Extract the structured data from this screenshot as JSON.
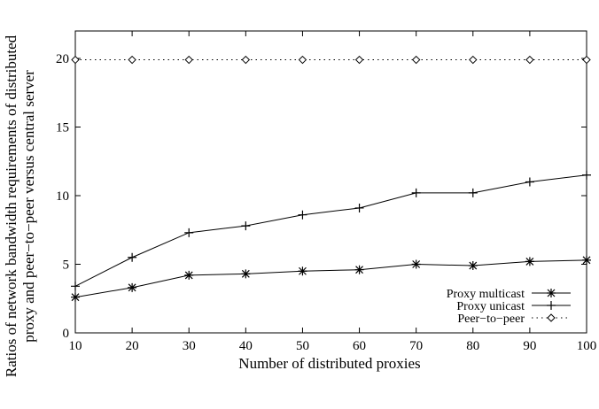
{
  "chart_data": {
    "type": "line",
    "title": "",
    "xlabel": "Number of distributed proxies",
    "ylabel": [
      "Ratios of network bandwidth requirements of distributed",
      "proxy and peer−to−peer versus central server"
    ],
    "xlim": [
      10,
      100
    ],
    "ylim": [
      0,
      22
    ],
    "x": [
      10,
      20,
      30,
      40,
      50,
      60,
      70,
      80,
      90,
      100
    ],
    "xticks": [
      "10",
      "20",
      "30",
      "40",
      "50",
      "60",
      "70",
      "80",
      "90",
      "100"
    ],
    "yticks": [
      "0",
      "5",
      "10",
      "15",
      "20"
    ],
    "grid": false,
    "legend_position": "bottom-right",
    "series": [
      {
        "name": "Proxy multicast",
        "marker": "star",
        "line": "solid",
        "values": [
          2.6,
          3.3,
          4.2,
          4.3,
          4.5,
          4.6,
          5.0,
          4.9,
          5.2,
          5.3
        ]
      },
      {
        "name": "Proxy unicast",
        "marker": "plus",
        "line": "solid",
        "values": [
          3.4,
          5.5,
          7.3,
          7.8,
          8.6,
          9.1,
          10.2,
          10.2,
          11.0,
          11.5
        ]
      },
      {
        "name": "Peer−to−peer",
        "marker": "diamond",
        "line": "dotted",
        "values": [
          19.9,
          19.9,
          19.9,
          19.9,
          19.9,
          19.9,
          19.9,
          19.9,
          19.9,
          19.9
        ]
      }
    ]
  }
}
